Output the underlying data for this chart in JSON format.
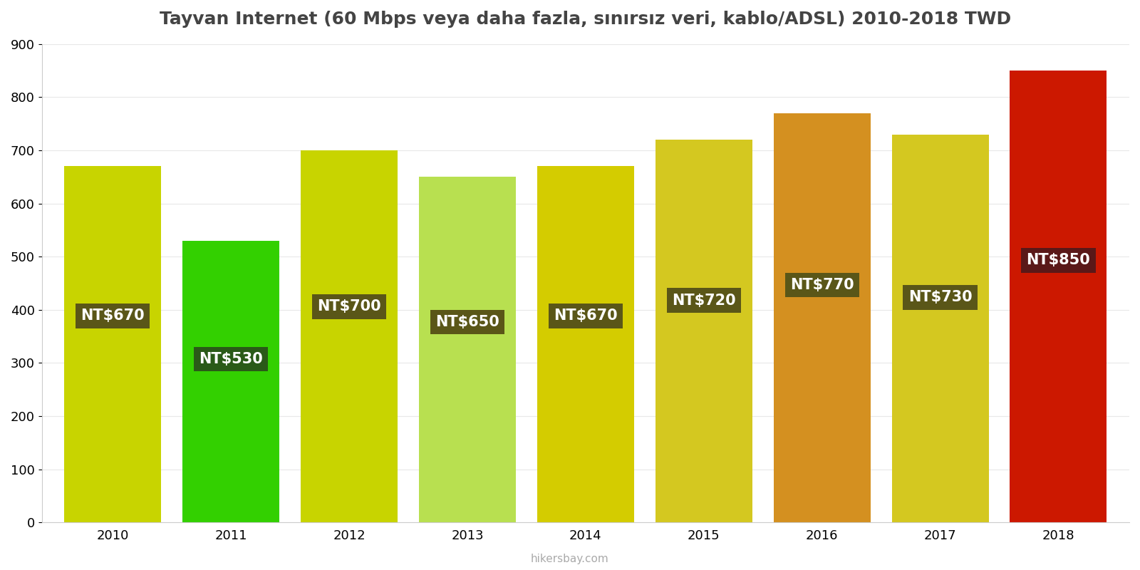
{
  "years": [
    2010,
    2011,
    2012,
    2013,
    2014,
    2015,
    2016,
    2017,
    2018
  ],
  "values": [
    670,
    530,
    700,
    650,
    670,
    720,
    770,
    730,
    850
  ],
  "bar_colors": [
    "#c8d400",
    "#33d000",
    "#c8d400",
    "#b8e050",
    "#d4cc00",
    "#d4c820",
    "#d49020",
    "#d4c820",
    "#cc1800"
  ],
  "label_bg_colors": [
    "#5a5618",
    "#2a5a18",
    "#5a5618",
    "#5a5618",
    "#5a5618",
    "#5a5618",
    "#5a5618",
    "#5a5618",
    "#5a1818"
  ],
  "labels": [
    "NT$670",
    "NT$530",
    "NT$700",
    "NT$650",
    "NT$670",
    "NT$720",
    "NT$770",
    "NT$730",
    "NT$850"
  ],
  "title": "Tayvan Internet (60 Mbps veya daha fazla, sınırsız veri, kablo/ADSL) 2010-2018 TWD",
  "ylabel_max": 900,
  "yticks": [
    0,
    100,
    200,
    300,
    400,
    500,
    600,
    700,
    800,
    900
  ],
  "watermark": "hikersbay.com",
  "background_color": "#ffffff"
}
